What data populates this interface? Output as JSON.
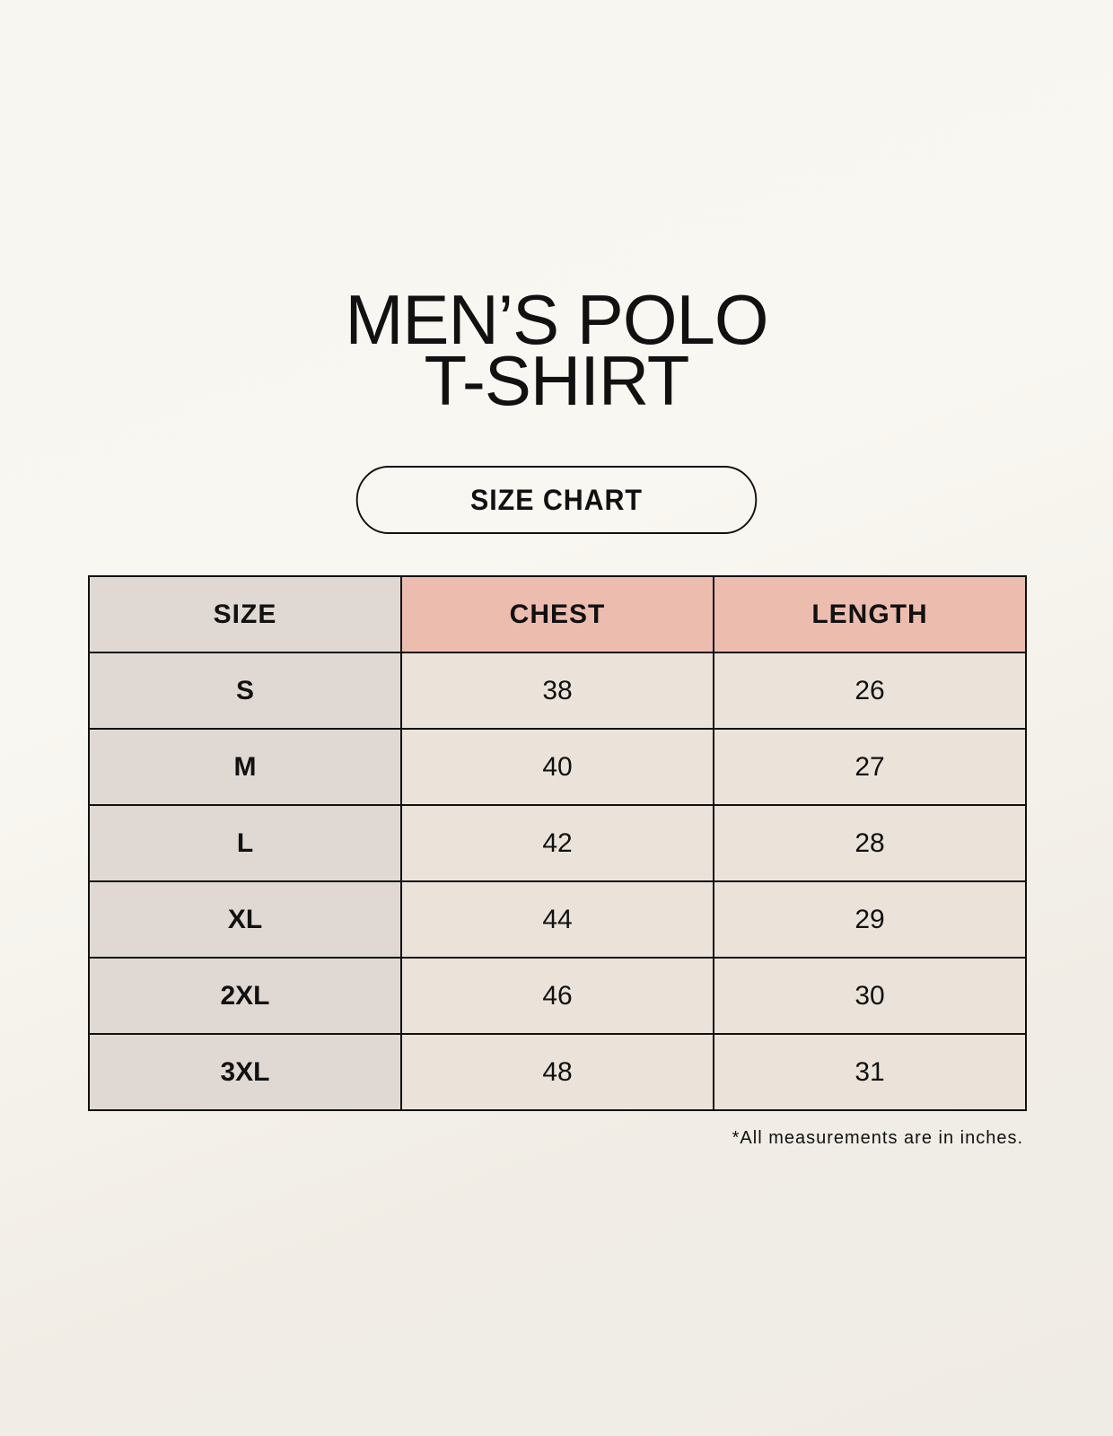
{
  "title_line1": "MEN’S POLO",
  "title_line2": "T-SHIRT",
  "badge": "SIZE CHART",
  "colors": {
    "header_highlight": "#ecbcaf",
    "size_column": "#e0d9d3",
    "cells": "#ebe3d9"
  },
  "table": {
    "headers": [
      "SIZE",
      "CHEST",
      "LENGTH"
    ],
    "rows": [
      [
        "S",
        "38",
        "26"
      ],
      [
        "M",
        "40",
        "27"
      ],
      [
        "L",
        "42",
        "28"
      ],
      [
        "XL",
        "44",
        "29"
      ],
      [
        "2XL",
        "46",
        "30"
      ],
      [
        "3XL",
        "48",
        "31"
      ]
    ]
  },
  "footnote": "*All measurements are in inches."
}
